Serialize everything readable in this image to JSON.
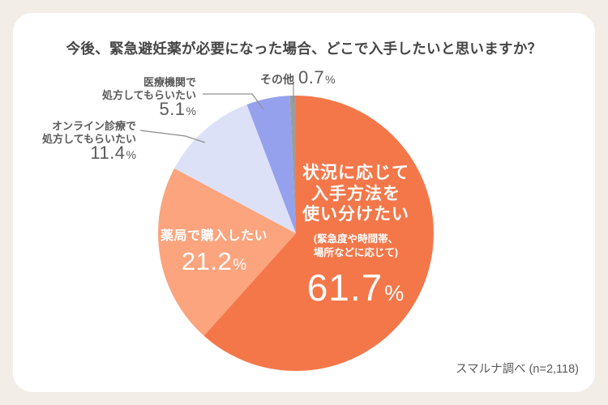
{
  "title": "今後、緊急避妊薬が必要になった場合、どこで入手したいと思いますか？",
  "source": "スマルナ調べ (n=2,118)",
  "labels": {
    "main": {
      "line1": "状況に応じて",
      "line2": "入手方法を",
      "line3": "使い分けたい",
      "note_line1": "(緊急度や時間帯、",
      "note_line2": "場所などに応じて)",
      "pct_num": "61.7",
      "pct_sign": "%"
    },
    "pharmacy": {
      "line1": "薬局で購入したい",
      "pct_num": "21.2",
      "pct_sign": "%"
    },
    "online": {
      "line1": "オンライン診療で",
      "line2": "処方してもらいたい",
      "pct_num": "11.4",
      "pct_sign": "%"
    },
    "medical": {
      "line1": "医療機関で",
      "line2": "処方してもらいたい",
      "pct_num": "5.1",
      "pct_sign": "%"
    },
    "other": {
      "line1": "その他",
      "pct_num": "0.7",
      "pct_sign": "%"
    }
  },
  "chart_data": {
    "type": "pie",
    "title": "今後、緊急避妊薬が必要になった場合、どこで入手したいと思いますか？",
    "direction": "clockwise",
    "start_angle_deg": 0,
    "slices": [
      {
        "label": "状況に応じて入手方法を使い分けたい",
        "sublabel": "(緊急度や時間帯、場所などに応じて)",
        "value": 61.7,
        "color": "#F4774A"
      },
      {
        "label": "薬局で購入したい",
        "value": 21.2,
        "color": "#FBA47D"
      },
      {
        "label": "オンライン診療で処方してもらいたい",
        "value": 11.4,
        "color": "#DDE1F8"
      },
      {
        "label": "医療機関で処方してもらいたい",
        "value": 5.1,
        "color": "#96A1ED"
      },
      {
        "label": "その他",
        "value": 0.7,
        "color": "#9C9C9C"
      }
    ],
    "source": "スマルナ調べ (n=2,118)"
  },
  "colors": {
    "background": "#F2EEE7",
    "card": "#FFFFFF",
    "title_text": "#454545",
    "label_text": "#5A5A5A",
    "leader_line": "#8F8F8F"
  }
}
